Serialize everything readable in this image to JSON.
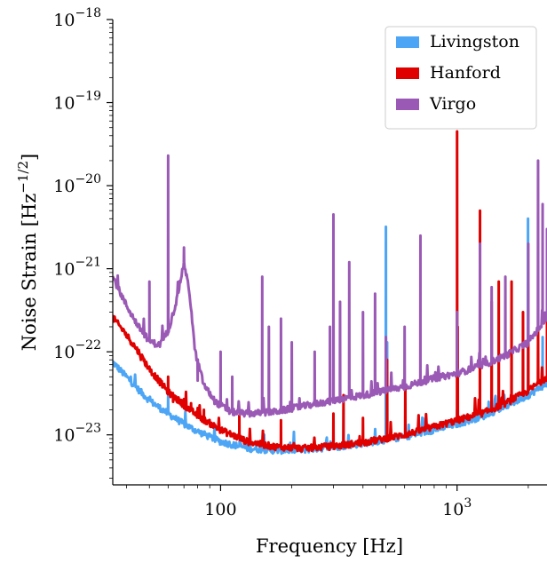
{
  "chart_data": {
    "type": "line",
    "xlabel": "Frequency [Hz]",
    "ylabel_main": "Noise Strain [Hz",
    "ylabel_exponent": "−1/2",
    "ylabel_close": "]",
    "x_scale": "log",
    "y_scale": "log",
    "xlim": [
      35,
      2400
    ],
    "ylim": [
      2.5e-24,
      1e-18
    ],
    "grid": false,
    "legend_placement": "top-right",
    "x_ticks": [
      {
        "value": 100,
        "base": "100",
        "exp": ""
      },
      {
        "value": 1000,
        "base": "10",
        "exp": "3"
      }
    ],
    "y_ticks": [
      {
        "value": 1e-23,
        "base": "10",
        "exp": "−23"
      },
      {
        "value": 1e-22,
        "base": "10",
        "exp": "−22"
      },
      {
        "value": 1e-21,
        "base": "10",
        "exp": "−21"
      },
      {
        "value": 1e-20,
        "base": "10",
        "exp": "−20"
      },
      {
        "value": 1e-19,
        "base": "10",
        "exp": "−19"
      },
      {
        "value": 1e-18,
        "base": "10",
        "exp": "−18"
      }
    ],
    "series": [
      {
        "name": "Livingston",
        "color": "#4da6f5",
        "stroke_width": 3,
        "baseline": [
          [
            35,
            7.5e-23
          ],
          [
            40,
            5e-23
          ],
          [
            45,
            3.5e-23
          ],
          [
            50,
            2.6e-23
          ],
          [
            60,
            1.8e-23
          ],
          [
            70,
            1.35e-23
          ],
          [
            80,
            1.1e-23
          ],
          [
            100,
            8.3e-24
          ],
          [
            130,
            6.9e-24
          ],
          [
            170,
            6.5e-24
          ],
          [
            220,
            6.6e-24
          ],
          [
            300,
            7.1e-24
          ],
          [
            400,
            7.9e-24
          ],
          [
            600,
            9.5e-24
          ],
          [
            800,
            1.15e-23
          ],
          [
            1000,
            1.35e-23
          ],
          [
            1300,
            1.7e-23
          ],
          [
            1600,
            2.2e-23
          ],
          [
            2000,
            3e-23
          ],
          [
            2400,
            4.2e-23
          ]
        ],
        "peaks": [
          [
            60,
            3e-23
          ],
          [
            331,
            2e-23
          ],
          [
            500,
            3.2e-21
          ],
          [
            506,
            1.3e-22
          ],
          [
            1000,
            2e-23
          ],
          [
            1995,
            4e-21
          ],
          [
            2300,
            1.5e-22
          ]
        ]
      },
      {
        "name": "Hanford",
        "color": "#e00000",
        "stroke_width": 3,
        "baseline": [
          [
            35,
            2.6e-22
          ],
          [
            40,
            1.6e-22
          ],
          [
            45,
            1e-22
          ],
          [
            50,
            6.2e-23
          ],
          [
            60,
            3.3e-23
          ],
          [
            70,
            2.3e-23
          ],
          [
            80,
            1.7e-23
          ],
          [
            100,
            1.15e-23
          ],
          [
            130,
            8.3e-24
          ],
          [
            170,
            7.2e-24
          ],
          [
            220,
            6.9e-24
          ],
          [
            300,
            7.3e-24
          ],
          [
            400,
            8.1e-24
          ],
          [
            600,
            1e-23
          ],
          [
            800,
            1.25e-23
          ],
          [
            1000,
            1.5e-23
          ],
          [
            1300,
            1.85e-23
          ],
          [
            1600,
            2.4e-23
          ],
          [
            2000,
            3.4e-23
          ],
          [
            2400,
            5e-23
          ]
        ],
        "peaks": [
          [
            46,
            8e-23
          ],
          [
            60,
            5e-23
          ],
          [
            63,
            2.5e-23
          ],
          [
            70,
            2.7e-23
          ],
          [
            75,
            2.4e-23
          ],
          [
            80,
            2.1e-23
          ],
          [
            85,
            2e-23
          ],
          [
            120,
            1.7e-23
          ],
          [
            180,
            1.5e-23
          ],
          [
            300,
            1.8e-23
          ],
          [
            331,
            3e-23
          ],
          [
            400,
            1.6e-23
          ],
          [
            506,
            8e-23
          ],
          [
            604,
            4e-23
          ],
          [
            1000,
            4.5e-20
          ],
          [
            1006,
            2e-22
          ],
          [
            1250,
            5e-21
          ],
          [
            1400,
            4e-22
          ],
          [
            1500,
            7e-22
          ],
          [
            1700,
            7e-22
          ],
          [
            1900,
            3e-22
          ],
          [
            2000,
            2e-22
          ],
          [
            2200,
            2e-22
          ],
          [
            2400,
            5e-22
          ]
        ]
      },
      {
        "name": "Virgo",
        "color": "#9b59b6",
        "stroke_width": 3,
        "baseline": [
          [
            35,
            8e-22
          ],
          [
            40,
            3.6e-22
          ],
          [
            45,
            2e-22
          ],
          [
            50,
            1.35e-22
          ],
          [
            55,
            1.2e-22
          ],
          [
            60,
            1.8e-22
          ],
          [
            65,
            4e-22
          ],
          [
            70,
            1.2e-21
          ],
          [
            74,
            5e-22
          ],
          [
            78,
            1e-22
          ],
          [
            85,
            4e-23
          ],
          [
            95,
            2.5e-23
          ],
          [
            110,
            1.9e-23
          ],
          [
            130,
            1.8e-23
          ],
          [
            170,
            1.9e-23
          ],
          [
            220,
            2.2e-23
          ],
          [
            300,
            2.6e-23
          ],
          [
            400,
            3e-23
          ],
          [
            600,
            3.8e-23
          ],
          [
            800,
            4.8e-23
          ],
          [
            1000,
            5.5e-23
          ],
          [
            1300,
            7e-23
          ],
          [
            1600,
            9e-23
          ],
          [
            2000,
            1.3e-22
          ],
          [
            2400,
            2.6e-22
          ]
        ],
        "peaks": [
          [
            50,
            7e-22
          ],
          [
            60,
            2.3e-20
          ],
          [
            70,
            1.8e-21
          ],
          [
            80,
            4.5e-23
          ],
          [
            87,
            3.5e-23
          ],
          [
            100,
            1e-22
          ],
          [
            112,
            5e-23
          ],
          [
            150,
            8e-22
          ],
          [
            160,
            2e-22
          ],
          [
            180,
            2.5e-22
          ],
          [
            200,
            1.3e-22
          ],
          [
            250,
            1e-22
          ],
          [
            290,
            2e-22
          ],
          [
            300,
            4.5e-21
          ],
          [
            320,
            4e-22
          ],
          [
            350,
            1.2e-21
          ],
          [
            400,
            3e-22
          ],
          [
            450,
            5e-22
          ],
          [
            500,
            1.5e-22
          ],
          [
            600,
            2e-22
          ],
          [
            700,
            2.5e-21
          ],
          [
            1000,
            3e-22
          ],
          [
            1250,
            2e-21
          ],
          [
            1400,
            6e-22
          ],
          [
            1600,
            8e-22
          ],
          [
            2000,
            2e-21
          ],
          [
            2200,
            2e-20
          ],
          [
            2300,
            6e-21
          ],
          [
            2400,
            3e-21
          ]
        ]
      }
    ],
    "legend_order": [
      "Livingston",
      "Hanford",
      "Virgo"
    ],
    "plot_order": [
      "Livingston",
      "Hanford",
      "Virgo"
    ]
  }
}
